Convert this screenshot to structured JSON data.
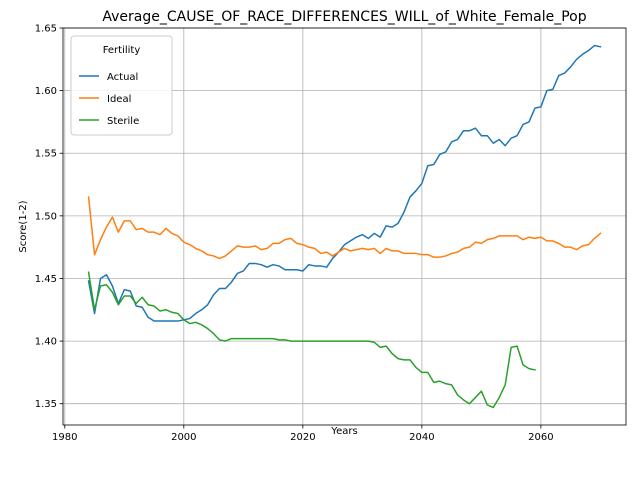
{
  "chart_data": {
    "type": "line",
    "title": "Average_CAUSE_OF_RACE_DIFFERENCES_WILL_of_White_Female_Pop",
    "xlabel": "Years",
    "ylabel": "Score(1-2)",
    "xlim": [
      1979.7,
      2074.3
    ],
    "ylim": [
      1.333,
      1.65
    ],
    "x_ticks": [
      1980,
      2000,
      2020,
      2040,
      2060
    ],
    "x_tick_labels": [
      "1980",
      "2000",
      "2020",
      "2040",
      "2060"
    ],
    "y_ticks": [
      1.35,
      1.4,
      1.45,
      1.5,
      1.55,
      1.6,
      1.65
    ],
    "y_tick_labels": [
      "1.35",
      "1.40",
      "1.45",
      "1.50",
      "1.55",
      "1.60",
      "1.65"
    ],
    "grid": true,
    "legend": {
      "title": "Fertility",
      "position": "top-left"
    },
    "series": [
      {
        "name": "Actual",
        "color": "#1f77b4",
        "points": [
          [
            1984,
            1.448
          ],
          [
            1985,
            1.422
          ],
          [
            1986,
            1.45
          ],
          [
            1987,
            1.453
          ],
          [
            1988,
            1.444
          ],
          [
            1989,
            1.43
          ],
          [
            1990,
            1.441
          ],
          [
            1991,
            1.44
          ],
          [
            1992,
            1.428
          ],
          [
            1993,
            1.427
          ],
          [
            1994,
            1.419
          ],
          [
            1995,
            1.416
          ],
          [
            1996,
            1.416
          ],
          [
            1997,
            1.416
          ],
          [
            1998,
            1.416
          ],
          [
            1999,
            1.416
          ],
          [
            2000,
            1.417
          ],
          [
            2001,
            1.418
          ],
          [
            2002,
            1.422
          ],
          [
            2003,
            1.425
          ],
          [
            2004,
            1.429
          ],
          [
            2005,
            1.437
          ],
          [
            2006,
            1.442
          ],
          [
            2007,
            1.442
          ],
          [
            2008,
            1.447
          ],
          [
            2009,
            1.454
          ],
          [
            2010,
            1.456
          ],
          [
            2011,
            1.462
          ],
          [
            2012,
            1.462
          ],
          [
            2013,
            1.461
          ],
          [
            2014,
            1.459
          ],
          [
            2015,
            1.461
          ],
          [
            2016,
            1.46
          ],
          [
            2017,
            1.457
          ],
          [
            2018,
            1.457
          ],
          [
            2019,
            1.457
          ],
          [
            2020,
            1.456
          ],
          [
            2021,
            1.461
          ],
          [
            2022,
            1.46
          ],
          [
            2023,
            1.46
          ],
          [
            2024,
            1.459
          ],
          [
            2025,
            1.466
          ],
          [
            2026,
            1.471
          ],
          [
            2027,
            1.477
          ],
          [
            2028,
            1.48
          ],
          [
            2029,
            1.483
          ],
          [
            2030,
            1.485
          ],
          [
            2031,
            1.482
          ],
          [
            2032,
            1.486
          ],
          [
            2033,
            1.483
          ],
          [
            2034,
            1.492
          ],
          [
            2035,
            1.491
          ],
          [
            2036,
            1.494
          ],
          [
            2037,
            1.503
          ],
          [
            2038,
            1.515
          ],
          [
            2039,
            1.52
          ],
          [
            2040,
            1.526
          ],
          [
            2041,
            1.54
          ],
          [
            2042,
            1.541
          ],
          [
            2043,
            1.549
          ],
          [
            2044,
            1.551
          ],
          [
            2045,
            1.559
          ],
          [
            2046,
            1.561
          ],
          [
            2047,
            1.568
          ],
          [
            2048,
            1.568
          ],
          [
            2049,
            1.57
          ],
          [
            2050,
            1.564
          ],
          [
            2051,
            1.564
          ],
          [
            2052,
            1.558
          ],
          [
            2053,
            1.561
          ],
          [
            2054,
            1.556
          ],
          [
            2055,
            1.562
          ],
          [
            2056,
            1.564
          ],
          [
            2057,
            1.573
          ],
          [
            2058,
            1.575
          ],
          [
            2059,
            1.586
          ],
          [
            2060,
            1.587
          ],
          [
            2061,
            1.6
          ],
          [
            2062,
            1.601
          ],
          [
            2063,
            1.612
          ],
          [
            2064,
            1.614
          ],
          [
            2065,
            1.619
          ],
          [
            2066,
            1.625
          ],
          [
            2067,
            1.629
          ],
          [
            2068,
            1.632
          ],
          [
            2069,
            1.636
          ],
          [
            2070,
            1.635
          ]
        ]
      },
      {
        "name": "Ideal",
        "color": "#ff7f0e",
        "points": [
          [
            1984,
            1.515
          ],
          [
            1985,
            1.469
          ],
          [
            1986,
            1.481
          ],
          [
            1987,
            1.491
          ],
          [
            1988,
            1.499
          ],
          [
            1989,
            1.487
          ],
          [
            1990,
            1.496
          ],
          [
            1991,
            1.496
          ],
          [
            1992,
            1.489
          ],
          [
            1993,
            1.49
          ],
          [
            1994,
            1.487
          ],
          [
            1995,
            1.487
          ],
          [
            1996,
            1.485
          ],
          [
            1997,
            1.49
          ],
          [
            1998,
            1.486
          ],
          [
            1999,
            1.484
          ],
          [
            2000,
            1.479
          ],
          [
            2001,
            1.477
          ],
          [
            2002,
            1.474
          ],
          [
            2003,
            1.472
          ],
          [
            2004,
            1.469
          ],
          [
            2005,
            1.468
          ],
          [
            2006,
            1.466
          ],
          [
            2007,
            1.468
          ],
          [
            2008,
            1.472
          ],
          [
            2009,
            1.476
          ],
          [
            2010,
            1.475
          ],
          [
            2011,
            1.475
          ],
          [
            2012,
            1.476
          ],
          [
            2013,
            1.473
          ],
          [
            2014,
            1.474
          ],
          [
            2015,
            1.478
          ],
          [
            2016,
            1.478
          ],
          [
            2017,
            1.481
          ],
          [
            2018,
            1.482
          ],
          [
            2019,
            1.478
          ],
          [
            2020,
            1.477
          ],
          [
            2021,
            1.475
          ],
          [
            2022,
            1.474
          ],
          [
            2023,
            1.47
          ],
          [
            2024,
            1.471
          ],
          [
            2025,
            1.468
          ],
          [
            2026,
            1.471
          ],
          [
            2027,
            1.474
          ],
          [
            2028,
            1.472
          ],
          [
            2029,
            1.473
          ],
          [
            2030,
            1.474
          ],
          [
            2031,
            1.473
          ],
          [
            2032,
            1.474
          ],
          [
            2033,
            1.47
          ],
          [
            2034,
            1.474
          ],
          [
            2035,
            1.472
          ],
          [
            2036,
            1.472
          ],
          [
            2037,
            1.47
          ],
          [
            2038,
            1.47
          ],
          [
            2039,
            1.47
          ],
          [
            2040,
            1.469
          ],
          [
            2041,
            1.469
          ],
          [
            2042,
            1.467
          ],
          [
            2043,
            1.467
          ],
          [
            2044,
            1.468
          ],
          [
            2045,
            1.47
          ],
          [
            2046,
            1.471
          ],
          [
            2047,
            1.474
          ],
          [
            2048,
            1.475
          ],
          [
            2049,
            1.479
          ],
          [
            2050,
            1.478
          ],
          [
            2051,
            1.481
          ],
          [
            2052,
            1.482
          ],
          [
            2053,
            1.484
          ],
          [
            2054,
            1.484
          ],
          [
            2055,
            1.484
          ],
          [
            2056,
            1.484
          ],
          [
            2057,
            1.481
          ],
          [
            2058,
            1.483
          ],
          [
            2059,
            1.482
          ],
          [
            2060,
            1.483
          ],
          [
            2061,
            1.48
          ],
          [
            2062,
            1.48
          ],
          [
            2063,
            1.478
          ],
          [
            2064,
            1.475
          ],
          [
            2065,
            1.475
          ],
          [
            2066,
            1.473
          ],
          [
            2067,
            1.476
          ],
          [
            2068,
            1.477
          ],
          [
            2069,
            1.482
          ],
          [
            2070,
            1.486
          ]
        ]
      },
      {
        "name": "Sterile",
        "color": "#2ca02c",
        "points": [
          [
            1984,
            1.455
          ],
          [
            1985,
            1.425
          ],
          [
            1986,
            1.444
          ],
          [
            1987,
            1.445
          ],
          [
            1988,
            1.439
          ],
          [
            1989,
            1.429
          ],
          [
            1990,
            1.436
          ],
          [
            1991,
            1.436
          ],
          [
            1992,
            1.43
          ],
          [
            1993,
            1.435
          ],
          [
            1994,
            1.429
          ],
          [
            1995,
            1.428
          ],
          [
            1996,
            1.424
          ],
          [
            1997,
            1.425
          ],
          [
            1998,
            1.423
          ],
          [
            1999,
            1.422
          ],
          [
            2000,
            1.417
          ],
          [
            2001,
            1.414
          ],
          [
            2002,
            1.415
          ],
          [
            2003,
            1.413
          ],
          [
            2004,
            1.41
          ],
          [
            2005,
            1.406
          ],
          [
            2006,
            1.401
          ],
          [
            2007,
            1.4
          ],
          [
            2008,
            1.402
          ],
          [
            2009,
            1.402
          ],
          [
            2010,
            1.402
          ],
          [
            2011,
            1.402
          ],
          [
            2012,
            1.402
          ],
          [
            2013,
            1.402
          ],
          [
            2014,
            1.402
          ],
          [
            2015,
            1.402
          ],
          [
            2016,
            1.401
          ],
          [
            2017,
            1.401
          ],
          [
            2018,
            1.4
          ],
          [
            2019,
            1.4
          ],
          [
            2020,
            1.4
          ],
          [
            2021,
            1.4
          ],
          [
            2022,
            1.4
          ],
          [
            2023,
            1.4
          ],
          [
            2024,
            1.4
          ],
          [
            2025,
            1.4
          ],
          [
            2026,
            1.4
          ],
          [
            2027,
            1.4
          ],
          [
            2028,
            1.4
          ],
          [
            2029,
            1.4
          ],
          [
            2030,
            1.4
          ],
          [
            2031,
            1.4
          ],
          [
            2032,
            1.399
          ],
          [
            2033,
            1.395
          ],
          [
            2034,
            1.396
          ],
          [
            2035,
            1.39
          ],
          [
            2036,
            1.386
          ],
          [
            2037,
            1.385
          ],
          [
            2038,
            1.385
          ],
          [
            2039,
            1.379
          ],
          [
            2040,
            1.375
          ],
          [
            2041,
            1.375
          ],
          [
            2042,
            1.367
          ],
          [
            2043,
            1.368
          ],
          [
            2044,
            1.366
          ],
          [
            2045,
            1.365
          ],
          [
            2046,
            1.357
          ],
          [
            2047,
            1.353
          ],
          [
            2048,
            1.35
          ],
          [
            2049,
            1.355
          ],
          [
            2050,
            1.36
          ],
          [
            2051,
            1.349
          ],
          [
            2052,
            1.347
          ],
          [
            2053,
            1.355
          ],
          [
            2054,
            1.365
          ],
          [
            2055,
            1.395
          ],
          [
            2056,
            1.396
          ],
          [
            2057,
            1.381
          ],
          [
            2058,
            1.378
          ],
          [
            2059,
            1.377
          ]
        ]
      }
    ]
  }
}
